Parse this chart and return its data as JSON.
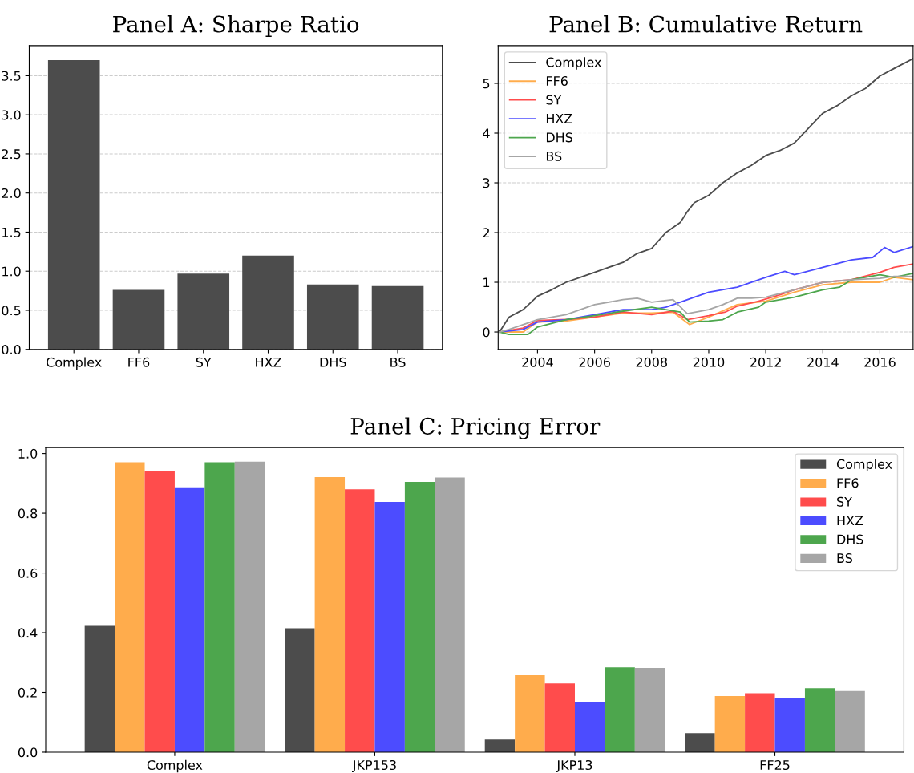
{
  "chart_data": [
    {
      "type": "bar",
      "title": "Panel A: Sharpe Ratio",
      "categories": [
        "Complex",
        "FF6",
        "SY",
        "HXZ",
        "DHS",
        "BS"
      ],
      "values": [
        3.7,
        0.76,
        0.97,
        1.2,
        0.83,
        0.81
      ],
      "color": "#4c4c4c",
      "ylim": [
        0,
        3.885
      ],
      "yticks": [
        {
          "value": 0,
          "label": "0.0"
        },
        {
          "value": 0.5,
          "label": "0.5"
        },
        {
          "value": 1,
          "label": "1.0"
        },
        {
          "value": 1.5,
          "label": "1.5"
        },
        {
          "value": 2,
          "label": "2.0"
        },
        {
          "value": 2.5,
          "label": "2.5"
        },
        {
          "value": 3,
          "label": "3.0"
        },
        {
          "value": 3.5,
          "label": "3.5"
        }
      ],
      "grid": "y"
    },
    {
      "type": "line",
      "title": "Panel B: Cumulative Return",
      "xlim": [
        "2002-08-15",
        "2017-03-01"
      ],
      "xticks": [
        {
          "value": "2004-01-01",
          "label": "2004"
        },
        {
          "value": "2006-01-01",
          "label": "2006"
        },
        {
          "value": "2008-01-01",
          "label": "2008"
        },
        {
          "value": "2010-01-01",
          "label": "2010"
        },
        {
          "value": "2012-01-01",
          "label": "2012"
        },
        {
          "value": "2014-01-01",
          "label": "2014"
        },
        {
          "value": "2016-01-01",
          "label": "2016"
        }
      ],
      "ylim": [
        -0.35,
        5.76
      ],
      "yticks": [
        0,
        1,
        2,
        3,
        4,
        5
      ],
      "grid": "y",
      "legend": "top left",
      "series": [
        {
          "name": "Complex",
          "color": "#4c4c4c",
          "x": [
            "2002-09",
            "2003-01",
            "2003-07",
            "2004-01",
            "2004-07",
            "2005-01",
            "2005-07",
            "2006-01",
            "2006-07",
            "2007-01",
            "2007-07",
            "2008-01",
            "2008-07",
            "2009-01",
            "2009-04",
            "2009-07",
            "2010-01",
            "2010-07",
            "2011-01",
            "2011-07",
            "2012-01",
            "2012-07",
            "2013-01",
            "2013-07",
            "2014-01",
            "2014-07",
            "2015-01",
            "2015-07",
            "2016-01",
            "2016-07",
            "2017-03"
          ],
          "values": [
            0.0,
            0.3,
            0.45,
            0.72,
            0.85,
            1.0,
            1.1,
            1.2,
            1.3,
            1.4,
            1.58,
            1.68,
            2.0,
            2.2,
            2.42,
            2.6,
            2.75,
            3.0,
            3.2,
            3.35,
            3.55,
            3.65,
            3.8,
            4.1,
            4.4,
            4.55,
            4.75,
            4.9,
            5.15,
            5.3,
            5.5
          ]
        },
        {
          "name": "FF6",
          "color": "#ffac4c",
          "x": [
            "2002-09",
            "2003-07",
            "2004-01",
            "2005-01",
            "2006-01",
            "2007-01",
            "2008-01",
            "2008-10",
            "2009-05",
            "2010-01",
            "2011-01",
            "2012-01",
            "2013-01",
            "2014-01",
            "2015-01",
            "2016-01",
            "2016-07",
            "2017-03"
          ],
          "values": [
            0.0,
            0.0,
            0.2,
            0.22,
            0.3,
            0.38,
            0.38,
            0.4,
            0.15,
            0.3,
            0.55,
            0.62,
            0.8,
            0.95,
            1.0,
            1.0,
            1.1,
            1.05
          ]
        },
        {
          "name": "SY",
          "color": "#ff4c4c",
          "x": [
            "2002-09",
            "2003-07",
            "2004-01",
            "2005-01",
            "2006-01",
            "2007-01",
            "2008-01",
            "2008-10",
            "2009-04",
            "2010-01",
            "2010-08",
            "2011-01",
            "2011-10",
            "2012-07",
            "2013-01",
            "2014-01",
            "2015-01",
            "2016-01",
            "2016-07",
            "2017-03"
          ],
          "values": [
            0.0,
            0.08,
            0.23,
            0.25,
            0.3,
            0.4,
            0.35,
            0.42,
            0.25,
            0.33,
            0.4,
            0.52,
            0.62,
            0.75,
            0.85,
            1.0,
            1.05,
            1.2,
            1.3,
            1.37
          ]
        },
        {
          "name": "HXZ",
          "color": "#4c4cff",
          "x": [
            "2002-09",
            "2003-07",
            "2004-01",
            "2005-01",
            "2006-01",
            "2007-01",
            "2008-01",
            "2008-07",
            "2009-01",
            "2009-07",
            "2010-01",
            "2011-01",
            "2012-01",
            "2012-09",
            "2013-01",
            "2014-01",
            "2015-01",
            "2015-10",
            "2016-03",
            "2016-07",
            "2017-03"
          ],
          "values": [
            0.0,
            0.05,
            0.2,
            0.25,
            0.35,
            0.45,
            0.45,
            0.5,
            0.6,
            0.7,
            0.8,
            0.9,
            1.1,
            1.22,
            1.15,
            1.3,
            1.45,
            1.5,
            1.7,
            1.6,
            1.72
          ]
        },
        {
          "name": "DHS",
          "color": "#4da64d",
          "x": [
            "2002-09",
            "2003-01",
            "2003-09",
            "2004-01",
            "2005-01",
            "2006-01",
            "2007-01",
            "2008-01",
            "2008-07",
            "2009-01",
            "2009-05",
            "2010-01",
            "2010-07",
            "2011-01",
            "2011-10",
            "2012-01",
            "2013-01",
            "2014-01",
            "2014-08",
            "2015-01",
            "2016-01",
            "2016-07",
            "2017-03"
          ],
          "values": [
            0.0,
            -0.05,
            -0.05,
            0.1,
            0.25,
            0.33,
            0.42,
            0.5,
            0.45,
            0.4,
            0.2,
            0.22,
            0.25,
            0.4,
            0.5,
            0.6,
            0.7,
            0.85,
            0.9,
            1.05,
            1.15,
            1.1,
            1.18
          ]
        },
        {
          "name": "BS",
          "color": "#a6a6a6",
          "x": [
            "2002-09",
            "2003-01",
            "2004-01",
            "2005-01",
            "2006-01",
            "2007-01",
            "2007-07",
            "2008-01",
            "2008-10",
            "2009-04",
            "2010-01",
            "2010-07",
            "2011-01",
            "2011-07",
            "2012-01",
            "2013-01",
            "2014-01",
            "2015-01",
            "2016-01",
            "2016-07",
            "2017-03"
          ],
          "values": [
            0.0,
            0.05,
            0.25,
            0.35,
            0.55,
            0.65,
            0.68,
            0.6,
            0.65,
            0.37,
            0.45,
            0.55,
            0.68,
            0.68,
            0.7,
            0.85,
            1.0,
            1.05,
            1.08,
            1.12,
            1.12
          ]
        }
      ]
    },
    {
      "type": "bar",
      "title": "Panel C: Pricing Error",
      "categories": [
        "Complex",
        "JKP153",
        "JKP13",
        "FF25"
      ],
      "ylim": [
        0,
        1.02
      ],
      "yticks": [
        {
          "value": 0,
          "label": "0.0"
        },
        {
          "value": 0.2,
          "label": "0.2"
        },
        {
          "value": 0.4,
          "label": "0.4"
        },
        {
          "value": 0.6,
          "label": "0.6"
        },
        {
          "value": 0.8,
          "label": "0.8"
        },
        {
          "value": 1,
          "label": "1.0"
        }
      ],
      "grid": false,
      "legend": "top right",
      "series": [
        {
          "name": "Complex",
          "color": "#4c4c4c",
          "values": [
            0.423,
            0.415,
            0.042,
            0.064
          ]
        },
        {
          "name": "FF6",
          "color": "#ffac4c",
          "values": [
            0.971,
            0.921,
            0.258,
            0.188
          ]
        },
        {
          "name": "SY",
          "color": "#ff4c4c",
          "values": [
            0.942,
            0.88,
            0.23,
            0.197
          ]
        },
        {
          "name": "HXZ",
          "color": "#4c4cff",
          "values": [
            0.887,
            0.838,
            0.167,
            0.182
          ]
        },
        {
          "name": "DHS",
          "color": "#4da64d",
          "values": [
            0.971,
            0.905,
            0.284,
            0.214
          ]
        },
        {
          "name": "BS",
          "color": "#a6a6a6",
          "values": [
            0.973,
            0.92,
            0.282,
            0.205
          ]
        }
      ]
    }
  ]
}
